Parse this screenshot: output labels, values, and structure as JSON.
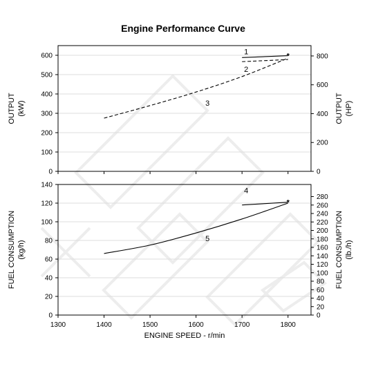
{
  "chart_data": {
    "title": "Engine Performance Curve",
    "xlabel": "ENGINE SPEED - r/min",
    "xlim": [
      1300,
      1850
    ],
    "xticks": [
      1300,
      1400,
      1500,
      1600,
      1700,
      1800
    ],
    "panels": [
      {
        "id": "output",
        "type": "line",
        "ylabel_left": [
          "OUTPUT",
          "(kW)"
        ],
        "ylabel_right": [
          "OUTPUT",
          "(HP)"
        ],
        "ylim": [
          0,
          650
        ],
        "yticks_left": [
          0,
          100,
          200,
          300,
          400,
          500,
          600
        ],
        "ylim_right": [
          0,
          871.7
        ],
        "yticks_right": [
          0,
          200,
          400,
          600,
          800
        ],
        "series": [
          {
            "name": "1",
            "style": "solid",
            "x": [
              1700,
              1800
            ],
            "y": [
              588,
              598
            ]
          },
          {
            "name": "2",
            "style": "dashed",
            "x": [
              1700,
              1800
            ],
            "y": [
              567,
              578
            ]
          },
          {
            "name": "3",
            "style": "dashed",
            "x": [
              1400,
              1500,
              1600,
              1700,
              1800
            ],
            "y": [
              275,
              340,
              410,
              490,
              585
            ]
          }
        ],
        "markers": [
          {
            "x": 1800,
            "y": 598,
            "symbol": "*"
          }
        ]
      },
      {
        "id": "fuel",
        "type": "line",
        "ylabel_left": [
          "FUEL CONSUMPTION",
          "(kg/h)"
        ],
        "ylabel_right": [
          "FUEL CONSUMPTION",
          "(lb./h)"
        ],
        "ylim": [
          0,
          140
        ],
        "yticks_left": [
          0,
          20,
          40,
          60,
          80,
          100,
          120,
          140
        ],
        "ylim_right": [
          0,
          308.6
        ],
        "yticks_right": [
          0,
          20,
          40,
          60,
          80,
          100,
          120,
          140,
          160,
          180,
          200,
          220,
          240,
          260,
          280
        ],
        "series": [
          {
            "name": "4",
            "style": "solid",
            "x": [
              1700,
              1800
            ],
            "y": [
              118,
              121
            ]
          },
          {
            "name": "5",
            "style": "solid",
            "x": [
              1400,
              1500,
              1600,
              1700,
              1800
            ],
            "y": [
              66,
              75,
              88,
              103,
              120
            ]
          }
        ],
        "markers": [
          {
            "x": 1800,
            "y": 121,
            "symbol": "*"
          }
        ]
      }
    ]
  }
}
